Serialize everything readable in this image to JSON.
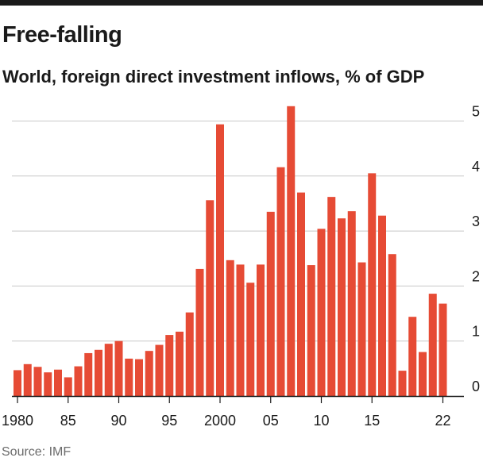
{
  "title": "Free-falling",
  "subtitle": "World, foreign direct investment inflows, % of GDP",
  "source": "Source: IMF",
  "colors": {
    "bar": "#e64b35",
    "grid": "#c8c8c8",
    "axis": "#1a1a1a",
    "topbar": "#1a1a1a"
  },
  "chart_data": {
    "type": "bar",
    "categories": [
      "1980",
      "1981",
      "1982",
      "1983",
      "1984",
      "1985",
      "1986",
      "1987",
      "1988",
      "1989",
      "1990",
      "1991",
      "1992",
      "1993",
      "1994",
      "1995",
      "1996",
      "1997",
      "1998",
      "1999",
      "2000",
      "2001",
      "2002",
      "2003",
      "2004",
      "2005",
      "2006",
      "2007",
      "2008",
      "2009",
      "2010",
      "2011",
      "2012",
      "2013",
      "2014",
      "2015",
      "2016",
      "2017",
      "2018",
      "2019",
      "2020",
      "2021",
      "2022"
    ],
    "values": [
      0.47,
      0.58,
      0.53,
      0.43,
      0.48,
      0.34,
      0.54,
      0.78,
      0.84,
      0.95,
      1.0,
      0.68,
      0.67,
      0.82,
      0.93,
      1.11,
      1.17,
      1.52,
      2.31,
      3.56,
      4.94,
      2.47,
      2.39,
      2.06,
      2.39,
      3.35,
      4.16,
      5.27,
      3.7,
      2.38,
      3.04,
      3.62,
      3.23,
      3.36,
      2.43,
      4.05,
      3.28,
      2.58,
      0.46,
      1.44,
      0.8,
      1.86,
      1.68
    ],
    "x_tick_labels": [
      "1980",
      "85",
      "90",
      "95",
      "2000",
      "05",
      "10",
      "15",
      "22"
    ],
    "x_tick_years": [
      1980,
      1985,
      1990,
      1995,
      2000,
      2005,
      2010,
      2015,
      2022
    ],
    "y_ticks": [
      0,
      1,
      2,
      3,
      4,
      5
    ],
    "ylim": [
      0,
      5.3
    ],
    "grid": true,
    "y_axis_side": "right",
    "title": "Free-falling",
    "xlabel": "",
    "ylabel": ""
  }
}
